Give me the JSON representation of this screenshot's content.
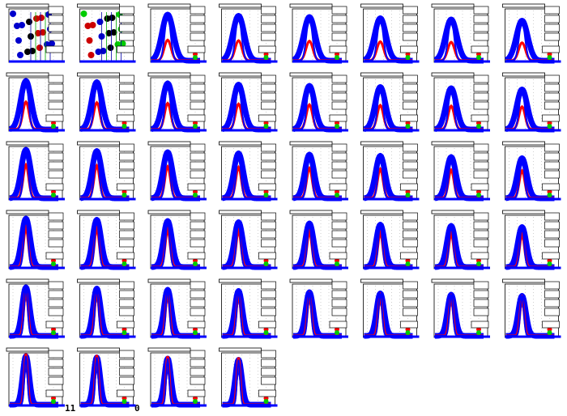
{
  "footer": {
    "left": "11",
    "right": "0"
  }
}
